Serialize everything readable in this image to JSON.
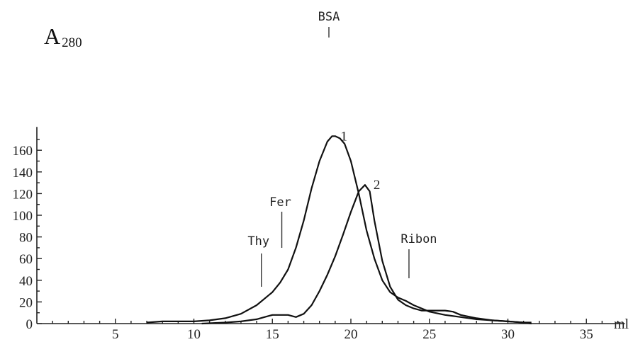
{
  "chart_data": {
    "type": "line",
    "ylabel": {
      "main": "A",
      "sub": "280"
    },
    "xlabel": "ml",
    "xlim": [
      0,
      37
    ],
    "ylim": [
      0,
      175
    ],
    "x_ticks": [
      5,
      10,
      15,
      20,
      25,
      30,
      35
    ],
    "y_ticks": [
      0,
      20,
      40,
      60,
      80,
      100,
      120,
      140,
      160
    ],
    "grid": false,
    "series": [
      {
        "name": "1",
        "x": [
          7,
          8,
          9,
          10,
          11,
          12,
          13,
          14,
          15,
          15.5,
          16,
          16.5,
          17,
          17.5,
          18,
          18.5,
          18.8,
          19,
          19.3,
          19.6,
          20,
          20.5,
          21,
          21.5,
          22,
          22.5,
          23,
          23.5,
          24,
          25,
          26,
          27,
          28,
          29,
          30,
          31,
          31.5
        ],
        "y": [
          1,
          2,
          2,
          2,
          3,
          5,
          9,
          17,
          29,
          38,
          50,
          70,
          95,
          125,
          150,
          168,
          173,
          173,
          171,
          166,
          150,
          120,
          86,
          60,
          40,
          29,
          24,
          21,
          17,
          11,
          8,
          6,
          4,
          3,
          2,
          1,
          1
        ]
      },
      {
        "name": "2",
        "x": [
          10.5,
          12,
          13,
          14,
          14.5,
          15,
          15.5,
          16,
          16.5,
          17,
          17.5,
          18,
          18.5,
          19,
          19.5,
          20,
          20.5,
          20.9,
          21.2,
          21.5,
          22,
          22.5,
          23,
          23.5,
          24,
          24.5,
          25,
          25.5,
          26,
          26.5,
          27,
          28,
          29,
          30,
          31,
          31.5
        ],
        "y": [
          0,
          1,
          2,
          4,
          6,
          8,
          8,
          8,
          6,
          9,
          17,
          30,
          45,
          62,
          82,
          103,
          122,
          128,
          122,
          95,
          58,
          34,
          22,
          17,
          14,
          12,
          12,
          12,
          12,
          11,
          8,
          5,
          3,
          2,
          1,
          0
        ]
      }
    ],
    "markers": [
      {
        "label": "BSA",
        "x": 18.6
      },
      {
        "label": "Fer",
        "x": 15.6
      },
      {
        "label": "Thy",
        "x": 14.3
      },
      {
        "label": "Ribon",
        "x": 23.7
      }
    ]
  }
}
